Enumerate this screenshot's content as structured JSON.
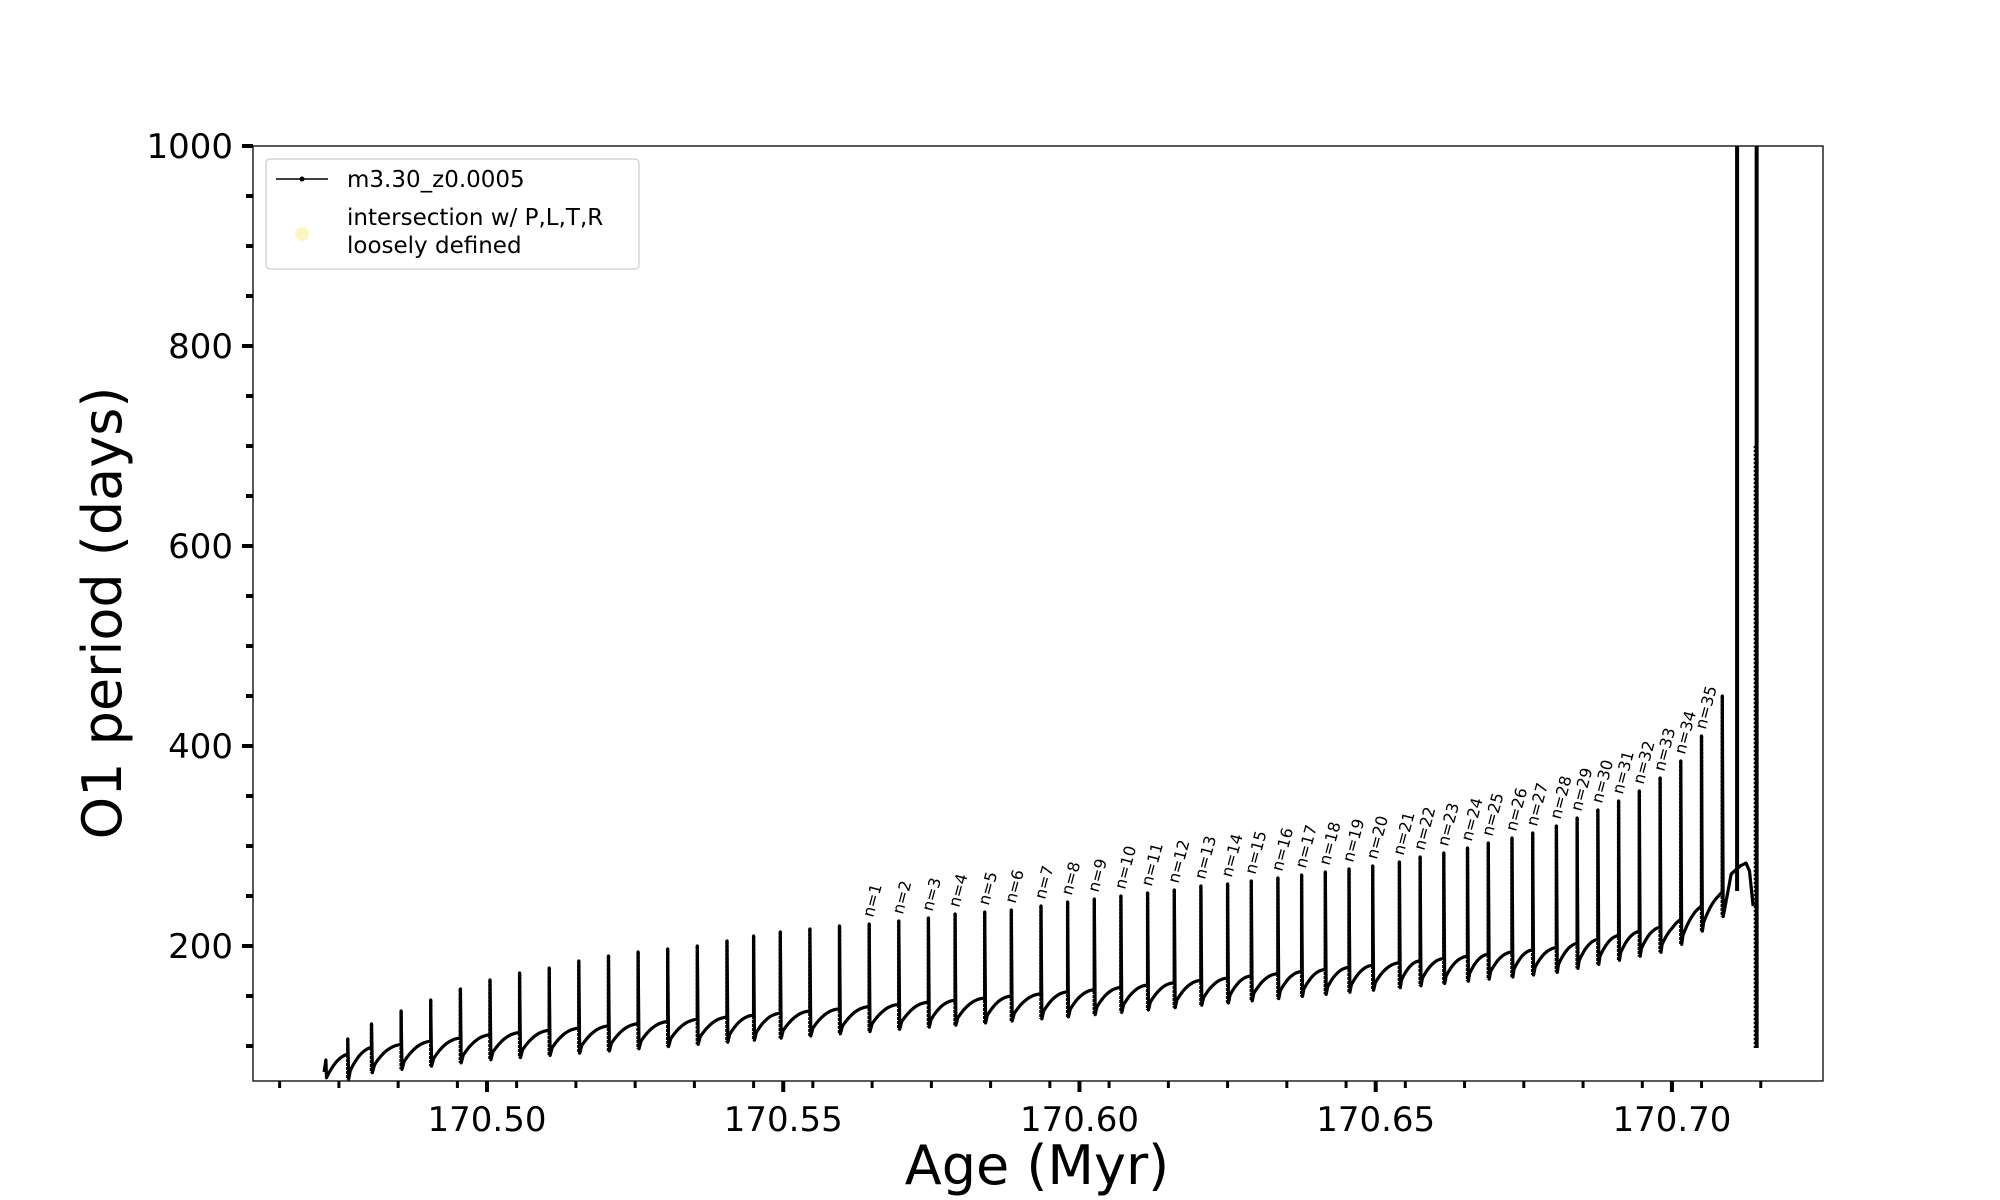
{
  "chart_data": {
    "type": "line",
    "xlabel": "Age (Myr)",
    "ylabel": "O1 period (days)",
    "xlim": [
      170.4605,
      170.7255
    ],
    "ylim": [
      65,
      1000
    ],
    "x_ticks": [
      170.5,
      170.55,
      170.6,
      170.65,
      170.7
    ],
    "x_tick_labels": [
      "170.50",
      "170.55",
      "170.60",
      "170.65",
      "170.70"
    ],
    "y_ticks": [
      200,
      400,
      600,
      800,
      1000
    ],
    "y_tick_labels": [
      "200",
      "400",
      "600",
      "800",
      "1000"
    ],
    "grid": false,
    "legend": {
      "placement": "upper-left",
      "entries": [
        {
          "label": "m3.30_z0.0005",
          "marker": "line"
        },
        {
          "label_lines": [
            "intersection w/ P,L,T,R",
            "loosely defined"
          ],
          "marker": "circle",
          "color": "#fbf7c4"
        }
      ]
    },
    "series": [
      {
        "name": "m3.30_z0.0005",
        "color": "#000000",
        "baseline": {
          "x": [
            170.4725,
            170.48,
            170.5,
            170.55,
            170.6,
            170.65,
            170.68,
            170.7,
            170.708,
            170.7115,
            170.7125,
            170.7133
          ],
          "y": [
            82,
            95,
            108,
            130,
            152,
            178,
            195,
            218,
            248,
            272,
            283,
            270
          ]
        },
        "pulse_x": [
          170.4765,
          170.4805,
          170.4855,
          170.4905,
          170.4955,
          170.5005,
          170.5055,
          170.5105,
          170.5155,
          170.5205,
          170.5255,
          170.5305,
          170.5355,
          170.5405,
          170.545,
          170.5495,
          170.5545,
          170.5595,
          170.5645,
          170.5695,
          170.5745,
          170.579,
          170.584,
          170.5885,
          170.5935,
          170.598,
          170.6025,
          170.607,
          170.6115,
          170.616,
          170.6205,
          170.625,
          170.629,
          170.6335,
          170.6375,
          170.6415,
          170.6455,
          170.6495,
          170.654,
          170.6575,
          170.6615,
          170.6655,
          170.669,
          170.673,
          170.6765,
          170.6805,
          170.684,
          170.6875,
          170.691,
          170.6945,
          170.698,
          170.7015,
          170.705,
          170.7085
        ],
        "pulse_peak_y": [
          107,
          122,
          135,
          146,
          157,
          166,
          173,
          178,
          185,
          190,
          194,
          197,
          200,
          205,
          210,
          214,
          217,
          220,
          222,
          225,
          228,
          232,
          234,
          236,
          240,
          244,
          247,
          250,
          253,
          256,
          260,
          262,
          265,
          268,
          271,
          274,
          277,
          280,
          284,
          289,
          293,
          298,
          303,
          308,
          313,
          320,
          328,
          336,
          345,
          355,
          368,
          385,
          410,
          450
        ],
        "pulse_drop": 22,
        "spikes": [
          {
            "x": 170.711,
            "y_top": 1000,
            "y_bottom": 255
          },
          {
            "x": 170.7143,
            "y_top": 1000,
            "y_bottom": 98
          }
        ]
      }
    ],
    "annotations": [
      "n=1",
      "n=2",
      "n=3",
      "n=4",
      "n=5",
      "n=6",
      "n=7",
      "n=8",
      "n=9",
      "n=10",
      "n=11",
      "n=12",
      "n=13",
      "n=14",
      "n=15",
      "n=16",
      "n=17",
      "n=18",
      "n=19",
      "n=20",
      "n=21",
      "n=22",
      "n=23",
      "n=24",
      "n=25",
      "n=26",
      "n=27",
      "n=28",
      "n=29",
      "n=30",
      "n=31",
      "n=32",
      "n=33",
      "n=34",
      "n=35"
    ],
    "annotation_x_start_index": 18
  }
}
